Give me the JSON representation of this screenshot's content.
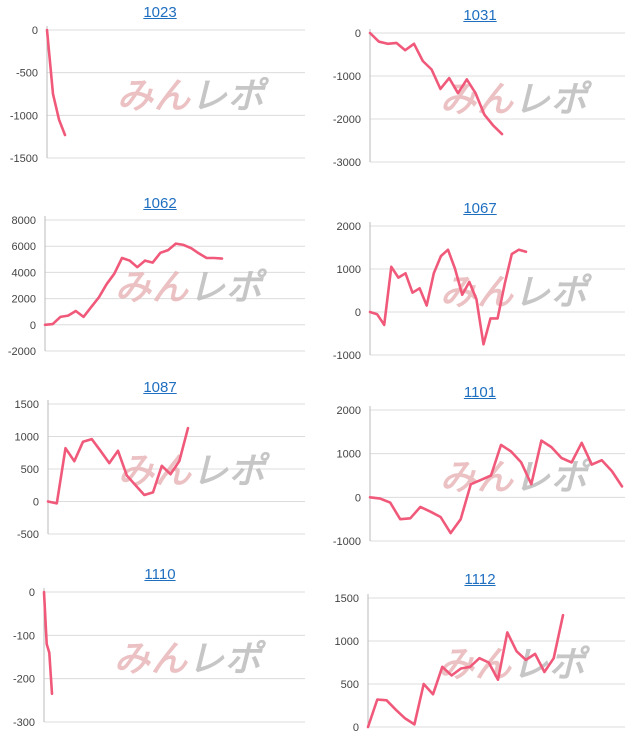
{
  "watermark": {
    "text": "みんレポ",
    "color": "#e8b7b9",
    "color2": "#bdbdbd"
  },
  "line_color": "#f0597a",
  "chart_data": [
    {
      "type": "line",
      "title": "1023",
      "ylim": [
        -1500,
        0
      ],
      "yticks": [
        0,
        -500,
        -1000,
        -1500
      ],
      "y": [
        0,
        -750,
        -1050,
        -1230
      ]
    },
    {
      "type": "line",
      "title": "1031",
      "ylim": [
        -3000,
        0
      ],
      "yticks": [
        0,
        -1000,
        -2000,
        -3000
      ],
      "y": [
        0,
        -200,
        -250,
        -230,
        -400,
        -250,
        -650,
        -850,
        -1300,
        -1050,
        -1400,
        -1080,
        -1400,
        -1900,
        -2150,
        -2350
      ]
    },
    {
      "type": "line",
      "title": "1062",
      "ylim": [
        -2000,
        8000
      ],
      "yticks": [
        8000,
        6000,
        4000,
        2000,
        0,
        -2000
      ],
      "y": [
        0,
        50,
        600,
        700,
        1050,
        600,
        1350,
        2100,
        3100,
        3900,
        5100,
        4900,
        4400,
        4900,
        4750,
        5500,
        5700,
        6200,
        6100,
        5850,
        5450,
        5100,
        5100,
        5050
      ]
    },
    {
      "type": "line",
      "title": "1067",
      "ylim": [
        -1000,
        2000
      ],
      "yticks": [
        2000,
        1000,
        0,
        -1000
      ],
      "y": [
        0,
        -50,
        -300,
        1050,
        800,
        900,
        450,
        550,
        150,
        900,
        1300,
        1450,
        1000,
        400,
        700,
        300,
        -750,
        -150,
        -150,
        650,
        1350,
        1450,
        1400
      ]
    },
    {
      "type": "line",
      "title": "1087",
      "ylim": [
        -500,
        1500
      ],
      "yticks": [
        1500,
        1000,
        500,
        0,
        -500
      ],
      "y": [
        0,
        -30,
        820,
        620,
        920,
        960,
        780,
        590,
        780,
        400,
        250,
        100,
        140,
        550,
        420,
        620,
        1130
      ]
    },
    {
      "type": "line",
      "title": "1101",
      "ylim": [
        -1000,
        2000
      ],
      "yticks": [
        2000,
        1000,
        0,
        -1000
      ],
      "y": [
        0,
        -30,
        -120,
        -500,
        -480,
        -220,
        -330,
        -450,
        -820,
        -500,
        300,
        400,
        500,
        1200,
        1050,
        800,
        300,
        1300,
        1150,
        900,
        800,
        1250,
        750,
        850,
        600,
        250
      ]
    },
    {
      "type": "line",
      "title": "1110",
      "ylim": [
        -300,
        0
      ],
      "yticks": [
        0,
        -100,
        -200,
        -300
      ],
      "y": [
        0,
        -120,
        -140,
        -235
      ]
    },
    {
      "type": "line",
      "title": "1112",
      "ylim": [
        0,
        1500
      ],
      "yticks": [
        1500,
        1000,
        500,
        0
      ],
      "y": [
        0,
        320,
        310,
        200,
        100,
        30,
        500,
        380,
        700,
        600,
        680,
        700,
        800,
        750,
        550,
        1100,
        880,
        780,
        850,
        640,
        800,
        1300
      ]
    }
  ]
}
